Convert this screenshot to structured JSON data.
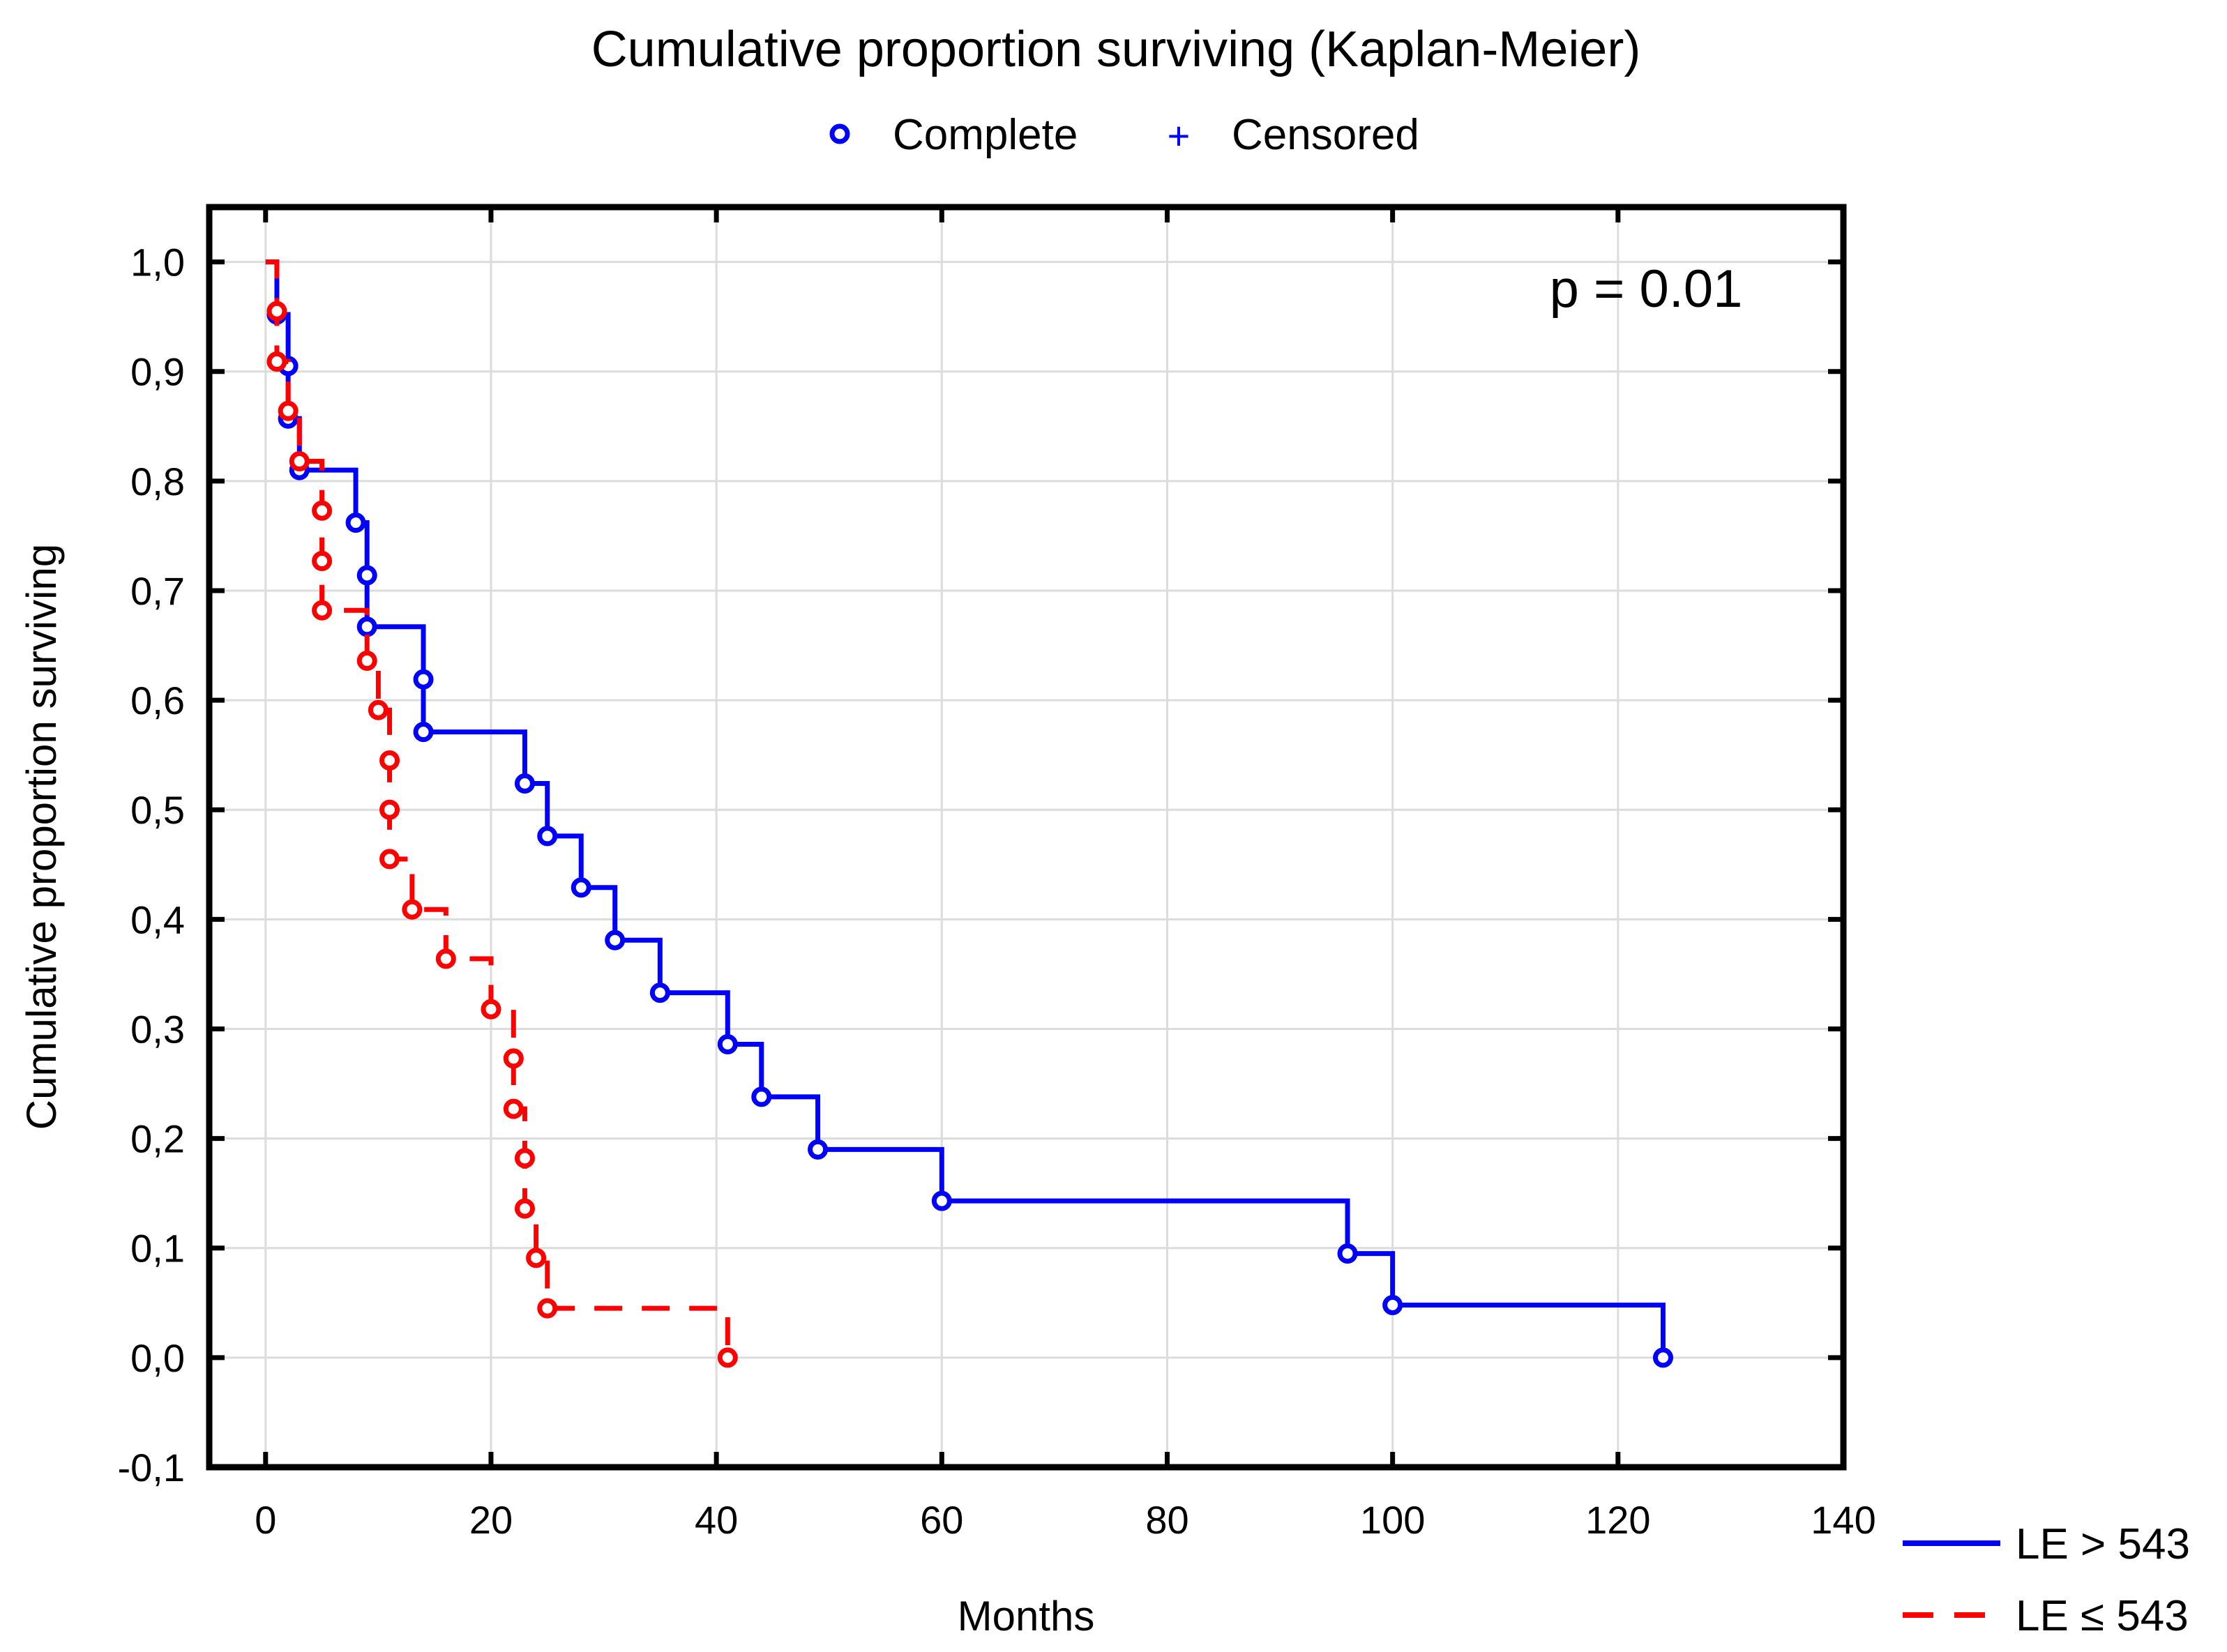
{
  "chart_data": {
    "type": "line",
    "title": "Cumulative proportion surviving (Kaplan-Meier)",
    "xlabel": "Months",
    "ylabel": "Cumulative proportion surviving",
    "xlim": [
      -5,
      140
    ],
    "ylim": [
      -0.1,
      1.05
    ],
    "xticks": [
      0,
      20,
      40,
      60,
      80,
      100,
      120,
      140
    ],
    "xtick_labels": [
      "0",
      "20",
      "40",
      "60",
      "80",
      "100",
      "120",
      "140"
    ],
    "yticks": [
      -0.1,
      0.0,
      0.1,
      0.2,
      0.3,
      0.4,
      0.5,
      0.6,
      0.7,
      0.8,
      0.9,
      1.0
    ],
    "ytick_labels": [
      "-0,1",
      "0,0",
      "0,1",
      "0,2",
      "0,3",
      "0,4",
      "0,5",
      "0,6",
      "0,7",
      "0,8",
      "0,9",
      "1,0"
    ],
    "grid": true,
    "annotation": "p = 0.01",
    "marker_legend": [
      {
        "label": "Complete",
        "symbol": "circle",
        "color": "#0000ff"
      },
      {
        "label": "Censored",
        "symbol": "+",
        "color": "#0000ff"
      }
    ],
    "series": [
      {
        "name": "LE > 543",
        "legend_label": "LE > 543",
        "color": "#0000ff",
        "dash": "solid",
        "points": [
          [
            0,
            1.0
          ],
          [
            1,
            0.952
          ],
          [
            2,
            0.905
          ],
          [
            2,
            0.857
          ],
          [
            3,
            0.81
          ],
          [
            8,
            0.762
          ],
          [
            9,
            0.714
          ],
          [
            9,
            0.667
          ],
          [
            14,
            0.619
          ],
          [
            14,
            0.571
          ],
          [
            23,
            0.524
          ],
          [
            25,
            0.476
          ],
          [
            28,
            0.429
          ],
          [
            31,
            0.381
          ],
          [
            35,
            0.333
          ],
          [
            41,
            0.286
          ],
          [
            44,
            0.238
          ],
          [
            49,
            0.19
          ],
          [
            60,
            0.143
          ],
          [
            96,
            0.095
          ],
          [
            100,
            0.048
          ],
          [
            124,
            0.0
          ]
        ]
      },
      {
        "name": "LE ≤ 543",
        "legend_label": "LE ≤ 543",
        "color": "#ff0000",
        "dash": "dashed",
        "points": [
          [
            0,
            1.0
          ],
          [
            1,
            0.955
          ],
          [
            1,
            0.909
          ],
          [
            2,
            0.864
          ],
          [
            3,
            0.818
          ],
          [
            5,
            0.773
          ],
          [
            5,
            0.727
          ],
          [
            5,
            0.682
          ],
          [
            9,
            0.636
          ],
          [
            10,
            0.591
          ],
          [
            11,
            0.545
          ],
          [
            11,
            0.5
          ],
          [
            11,
            0.455
          ],
          [
            13,
            0.409
          ],
          [
            16,
            0.364
          ],
          [
            20,
            0.318
          ],
          [
            22,
            0.273
          ],
          [
            22,
            0.227
          ],
          [
            23,
            0.182
          ],
          [
            23,
            0.136
          ],
          [
            24,
            0.091
          ],
          [
            25,
            0.045
          ],
          [
            41,
            0.0
          ]
        ]
      }
    ]
  }
}
